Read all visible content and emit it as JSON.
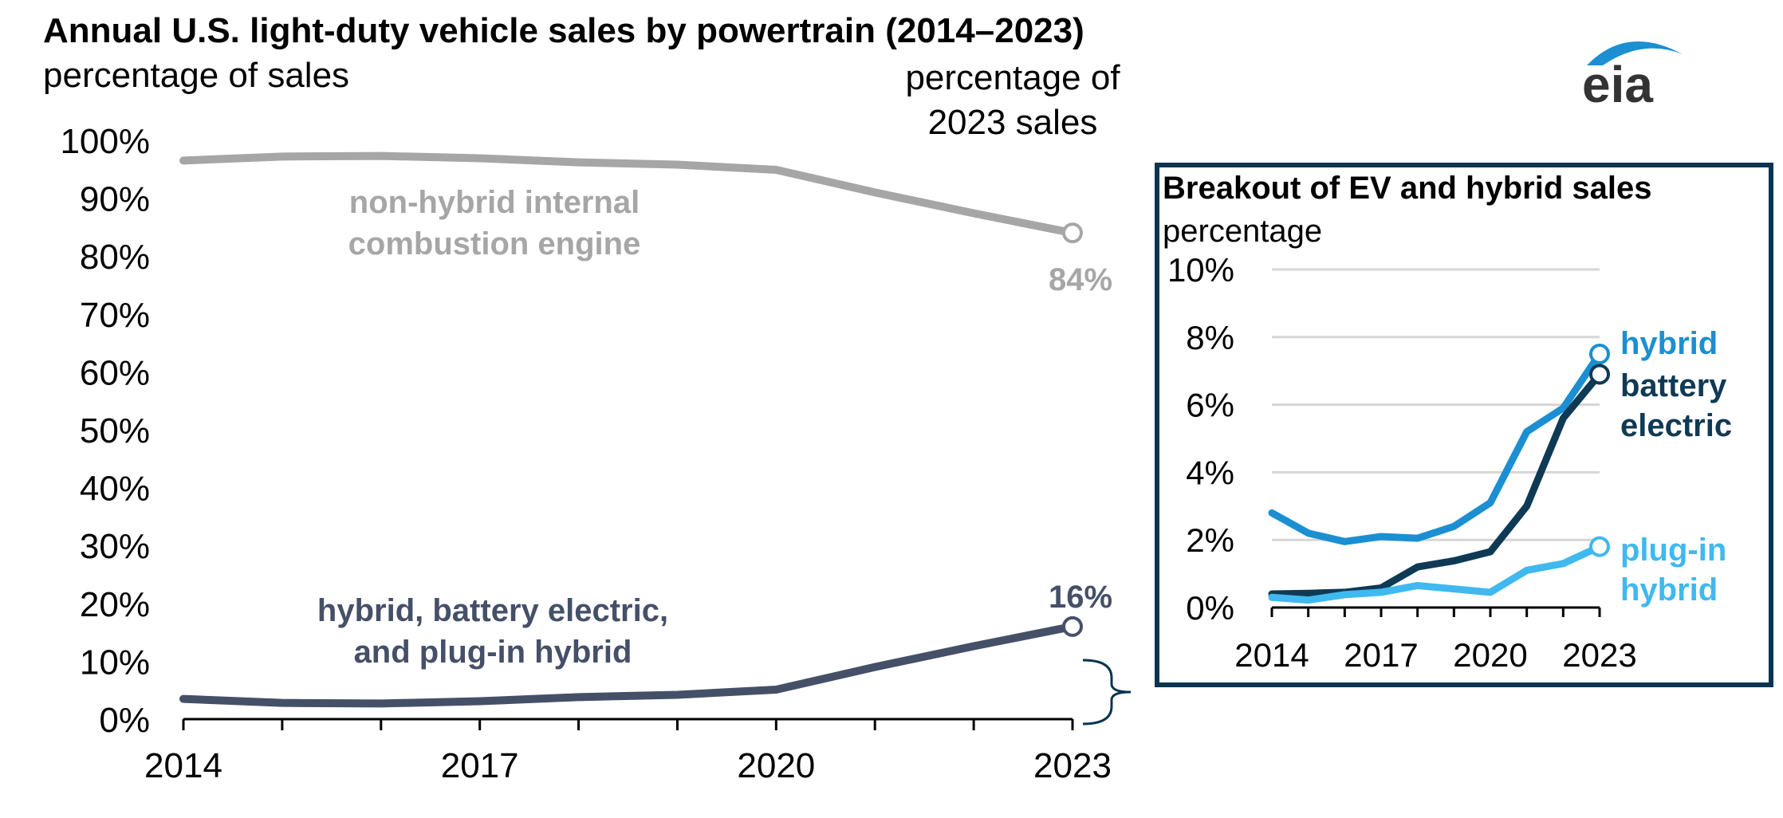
{
  "title": "Annual U.S. light-duty vehicle sales by powertrain (2014–2023)",
  "subtitle": "percentage of sales",
  "right_note": "percentage of 2023 sales",
  "logo_text": "eia",
  "colors": {
    "ice": "#a6a6a6",
    "ev_total": "#455068",
    "hybrid": "#1b8fd2",
    "battery_electric": "#0f3a55",
    "plugin_hybrid": "#3fb9ef",
    "inset_border": "#0a3450"
  },
  "chart_data": [
    {
      "type": "line",
      "x": [
        2014,
        2015,
        2016,
        2017,
        2018,
        2019,
        2020,
        2021,
        2022,
        2023
      ],
      "x_tick_labels": [
        "2014",
        "2017",
        "2020",
        "2023"
      ],
      "ylim": [
        0,
        100
      ],
      "y_tick_labels": [
        "0%",
        "10%",
        "20%",
        "30%",
        "40%",
        "50%",
        "60%",
        "70%",
        "80%",
        "90%",
        "100%"
      ],
      "grid": false,
      "series": [
        {
          "key": "ice",
          "name": "non-hybrid internal combustion engine",
          "values": [
            96.5,
            97.2,
            97.3,
            96.9,
            96.2,
            95.8,
            94.9,
            91.0,
            87.4,
            84.0
          ],
          "end_label": "84%"
        },
        {
          "key": "ev_total",
          "name": "hybrid, battery electric, and plug-in hybrid",
          "values": [
            3.5,
            2.8,
            2.7,
            3.1,
            3.8,
            4.2,
            5.1,
            9.0,
            12.6,
            16.0
          ],
          "end_label": "16%"
        }
      ]
    },
    {
      "type": "line",
      "title": "Breakout of EV and hybrid sales",
      "ylabel": "percentage",
      "x": [
        2014,
        2015,
        2016,
        2017,
        2018,
        2019,
        2020,
        2021,
        2022,
        2023
      ],
      "x_tick_labels": [
        "2014",
        "2017",
        "2020",
        "2023"
      ],
      "ylim": [
        0,
        10
      ],
      "y_tick_labels": [
        "0%",
        "2%",
        "4%",
        "6%",
        "8%",
        "10%"
      ],
      "grid": true,
      "series": [
        {
          "key": "hybrid",
          "name": "hybrid",
          "values": [
            2.8,
            2.2,
            1.95,
            2.1,
            2.05,
            2.4,
            3.1,
            5.2,
            5.9,
            7.5
          ]
        },
        {
          "key": "battery_electric",
          "name": "battery electric",
          "values": [
            0.4,
            0.42,
            0.45,
            0.58,
            1.2,
            1.38,
            1.65,
            3.0,
            5.6,
            6.9
          ]
        },
        {
          "key": "plugin_hybrid",
          "name": "plug-in hybrid",
          "values": [
            0.3,
            0.22,
            0.38,
            0.45,
            0.65,
            0.55,
            0.45,
            1.1,
            1.3,
            1.8
          ]
        }
      ]
    }
  ]
}
